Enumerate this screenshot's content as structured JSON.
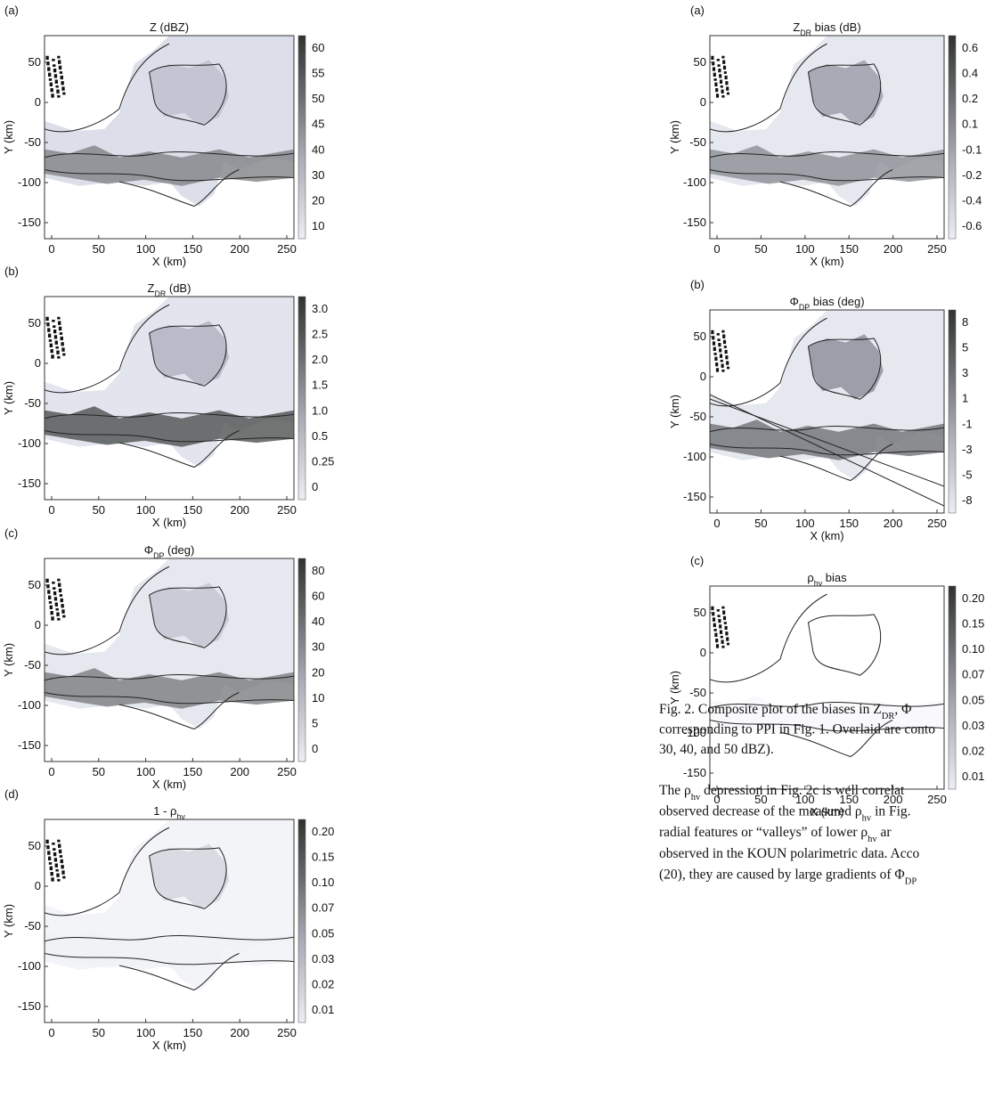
{
  "left_panels": [
    {
      "label": "(a)",
      "title": [
        {
          "text": "Z (dBZ)"
        }
      ],
      "y_label": "Y (km)",
      "x_label": "X (km)",
      "y_ticks": [
        "50",
        "0",
        "-50",
        "-100",
        "-150"
      ],
      "x_ticks": [
        "0",
        "50",
        "100",
        "150",
        "200",
        "250"
      ],
      "colorbar": [
        "60",
        "55",
        "50",
        "45",
        "40",
        "30",
        "20",
        "10"
      ]
    },
    {
      "label": "(b)",
      "title": [
        {
          "text": "Z"
        },
        {
          "text": "DR",
          "sub": true
        },
        {
          "text": " (dB)"
        }
      ],
      "y_label": "Y (km)",
      "x_label": "X (km)",
      "y_ticks": [
        "50",
        "0",
        "-50",
        "-100",
        "-150"
      ],
      "x_ticks": [
        "0",
        "50",
        "100",
        "150",
        "200",
        "250"
      ],
      "colorbar": [
        "3.0",
        "2.5",
        "2.0",
        "1.5",
        "1.0",
        "0.5",
        "0.25",
        "0"
      ]
    },
    {
      "label": "(c)",
      "title": [
        {
          "text": "Φ"
        },
        {
          "text": "DP",
          "sub": true
        },
        {
          "text": " (deg)"
        }
      ],
      "y_label": "Y (km)",
      "x_label": "X (km)",
      "y_ticks": [
        "50",
        "0",
        "-50",
        "-100",
        "-150"
      ],
      "x_ticks": [
        "0",
        "50",
        "100",
        "150",
        "200",
        "250"
      ],
      "colorbar": [
        "80",
        "60",
        "40",
        "30",
        "20",
        "10",
        "5",
        "0"
      ]
    },
    {
      "label": "(d)",
      "title": [
        {
          "text": "1 - ρ"
        },
        {
          "text": "hv",
          "sub": true
        }
      ],
      "y_label": "Y (km)",
      "x_label": "X (km)",
      "y_ticks": [
        "50",
        "0",
        "-50",
        "-100",
        "-150"
      ],
      "x_ticks": [
        "0",
        "50",
        "100",
        "150",
        "200",
        "250"
      ],
      "colorbar": [
        "0.20",
        "0.15",
        "0.10",
        "0.07",
        "0.05",
        "0.03",
        "0.02",
        "0.01"
      ]
    }
  ],
  "right_panels": [
    {
      "label": "(a)",
      "title": [
        {
          "text": "Z"
        },
        {
          "text": "DR",
          "sub": true
        },
        {
          "text": " bias (dB)"
        }
      ],
      "y_label": "Y (km)",
      "x_label": "X (km)",
      "y_ticks": [
        "50",
        "0",
        "-50",
        "-100",
        "-150"
      ],
      "x_ticks": [
        "0",
        "50",
        "100",
        "150",
        "200",
        "250"
      ],
      "colorbar": [
        "0.6",
        "0.4",
        "0.2",
        "0.1",
        "-0.1",
        "-0.2",
        "-0.4",
        "-0.6"
      ]
    },
    {
      "label": "(b)",
      "title": [
        {
          "text": "Φ"
        },
        {
          "text": "DP",
          "sub": true
        },
        {
          "text": " bias (deg)"
        }
      ],
      "y_label": "Y (km)",
      "x_label": "X (km)",
      "y_ticks": [
        "50",
        "0",
        "-50",
        "-100",
        "-150"
      ],
      "x_ticks": [
        "0",
        "50",
        "100",
        "150",
        "200",
        "250"
      ],
      "colorbar": [
        "8",
        "5",
        "3",
        "1",
        "-1",
        "-3",
        "-5",
        "-8"
      ]
    },
    {
      "label": "(c)",
      "title": [
        {
          "text": "ρ"
        },
        {
          "text": "hv",
          "sub": true
        },
        {
          "text": " bias"
        }
      ],
      "y_label": "Y (km)",
      "x_label": "X (km)",
      "y_ticks": [
        "50",
        "0",
        "-50",
        "-100",
        "-150"
      ],
      "x_ticks": [
        "0",
        "50",
        "100",
        "150",
        "200",
        "250"
      ],
      "colorbar": [
        "0.20",
        "0.15",
        "0.10",
        "0.07",
        "0.05",
        "0.03",
        "0.02",
        "0.01"
      ]
    }
  ],
  "caption": [
    [
      {
        "text": "Fig. 2. Composite plot of the biases in Z"
      },
      {
        "text": "DR",
        "sub": true
      },
      {
        "text": ", Φ"
      }
    ],
    [
      {
        "text": "corresponding to PPI in Fig. 1. Overlaid are conto"
      }
    ],
    [
      {
        "text": "30, 40, and 50 dBZ)."
      }
    ]
  ],
  "paragraph": [
    [
      {
        "text": "The ρ"
      },
      {
        "text": "hv",
        "sub": true
      },
      {
        "text": " depression in Fig. 2c is well correlat"
      }
    ],
    [
      {
        "text": "observed decrease of the measured ρ"
      },
      {
        "text": "hv",
        "sub": true
      },
      {
        "text": " in Fig."
      }
    ],
    [
      {
        "text": "radial features or “valleys” of lower ρ"
      },
      {
        "text": "hv",
        "sub": true
      },
      {
        "text": " ar"
      }
    ],
    [
      {
        "text": "observed in the KOUN polarimetric data. Acco"
      }
    ],
    [
      {
        "text": "(20), they are caused by large gradients of Φ"
      },
      {
        "text": "DP",
        "sub": true
      }
    ]
  ]
}
